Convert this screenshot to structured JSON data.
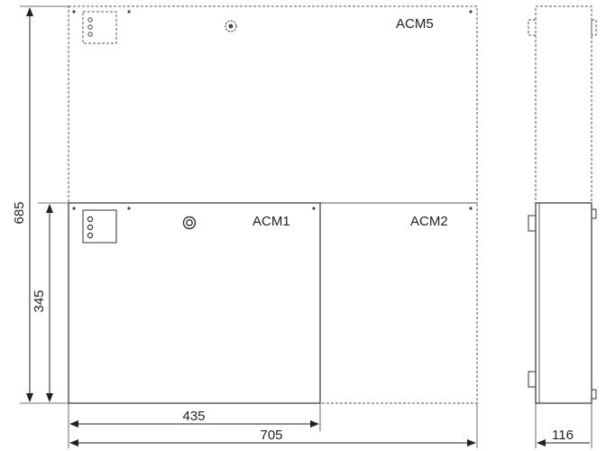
{
  "diagram": {
    "modules": {
      "acm5": "ACM5",
      "acm1": "ACM1",
      "acm2": "ACM2"
    },
    "dimensions": {
      "total_height": "685",
      "lower_height": "345",
      "lower_width": "435",
      "total_width": "705",
      "depth": "116"
    }
  }
}
